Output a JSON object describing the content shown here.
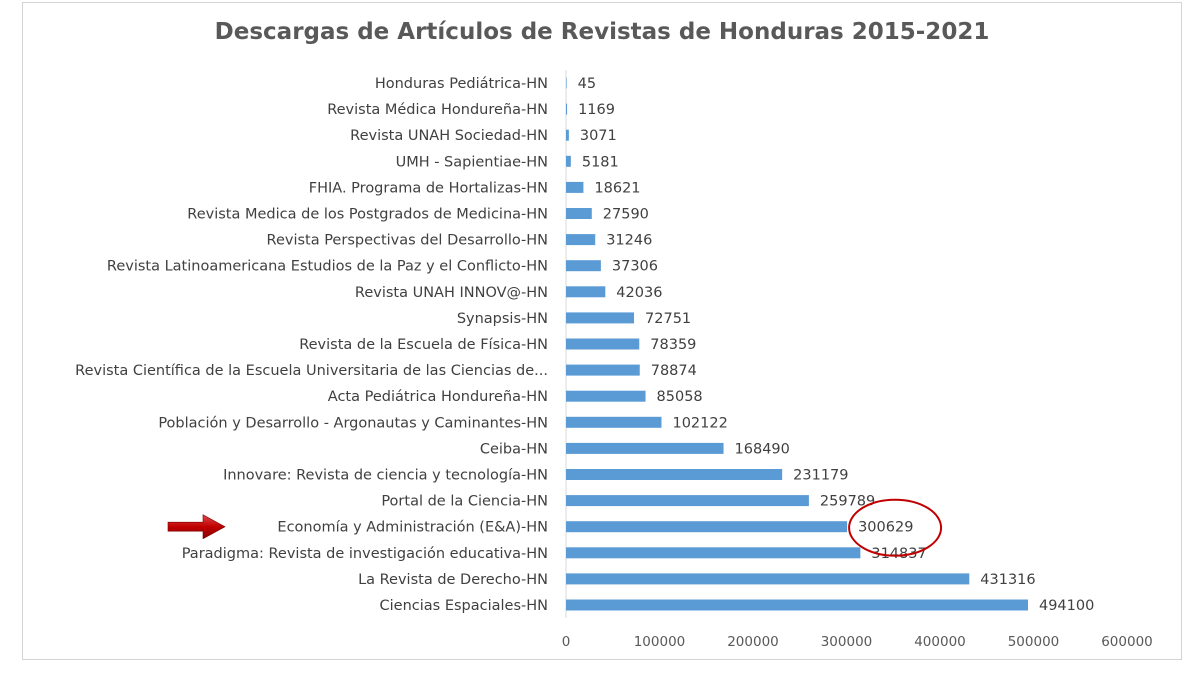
{
  "chart_data": {
    "type": "bar",
    "orientation": "horizontal",
    "title": "Descargas de Artículos de Revistas de Honduras 2015-2021",
    "xlabel": "",
    "ylabel": "",
    "xlim": [
      0,
      600000
    ],
    "xticks": [
      "0",
      "100000",
      "200000",
      "300000",
      "400000",
      "500000",
      "600000"
    ],
    "grid": false,
    "legend": "none",
    "bar_color": "#5b9bd5",
    "categories": [
      "Honduras Pediátrica-HN",
      "Revista Médica Hondureña-HN",
      "Revista UNAH Sociedad-HN",
      "UMH - Sapientiae-HN",
      "FHIA. Programa de Hortalizas-HN",
      "Revista Medica de los Postgrados de Medicina-HN",
      "Revista Perspectivas del Desarrollo-HN",
      "Revista Latinoamericana Estudios de la Paz y el Conflicto-HN",
      "Revista UNAH INNOV@-HN",
      "Synapsis-HN",
      "Revista de la Escuela de Física-HN",
      "Revista Científica de la Escuela Universitaria de las Ciencias de...",
      "Acta Pediátrica Hondureña-HN",
      "Población y Desarrollo - Argonautas y Caminantes-HN",
      "Ceiba-HN",
      "Innovare: Revista de ciencia y tecnología-HN",
      "Portal de la Ciencia-HN",
      "Economía y Administración (E&A)-HN",
      "Paradigma: Revista de investigación educativa-HN",
      "La Revista de Derecho-HN",
      "Ciencias Espaciales-HN"
    ],
    "values": [
      45,
      1169,
      3071,
      5181,
      18621,
      27590,
      31246,
      37306,
      42036,
      72751,
      78359,
      78874,
      85058,
      102122,
      168490,
      231179,
      259789,
      300629,
      314837,
      431316,
      494100
    ],
    "annotations": [
      {
        "type": "arrow",
        "target": "Economía y Administración (E&A)-HN",
        "color": "#c00000"
      },
      {
        "type": "circle",
        "target": "Economía y Administración (E&A)-HN",
        "color": "#c00000"
      }
    ]
  }
}
